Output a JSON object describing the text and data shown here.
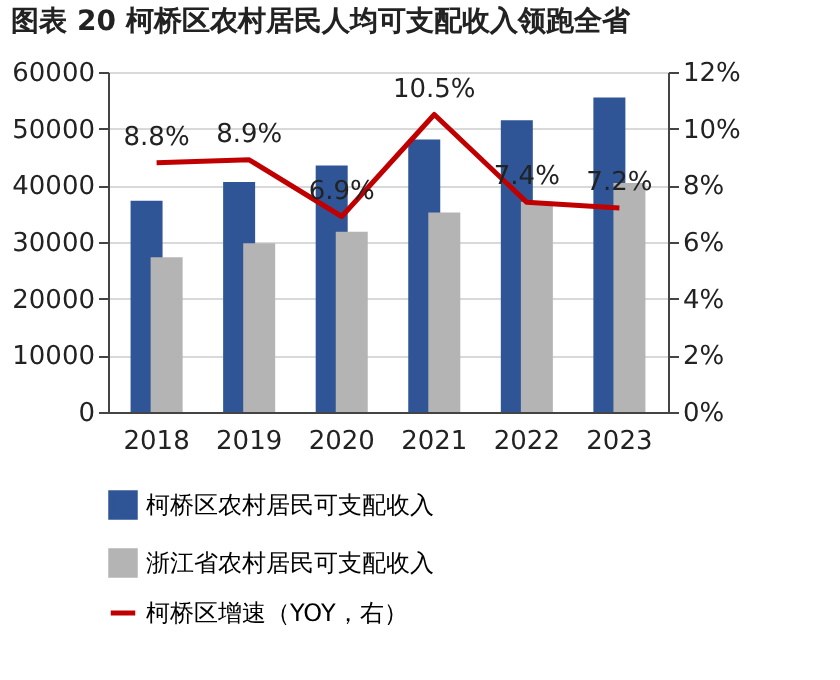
{
  "chart_data": {
    "type": "bar",
    "title": "图表 20 柯桥区农村居民人均可支配收入领跑全省",
    "categories": [
      "2018",
      "2019",
      "2020",
      "2021",
      "2022",
      "2023"
    ],
    "series": [
      {
        "name": "柯桥区农村居民可支配收入",
        "color": "#2f5597",
        "values": [
          37300,
          40600,
          43500,
          48100,
          51500,
          55500
        ]
      },
      {
        "name": "浙江省农村居民可支配收入",
        "color": "#b4b4b4",
        "values": [
          27300,
          29800,
          31800,
          35200,
          37100,
          40400
        ]
      },
      {
        "name": "柯桥区增速（YOY，右）",
        "type": "line",
        "axis": "y2",
        "color": "#c00000",
        "values": [
          8.8,
          8.9,
          6.9,
          10.5,
          7.4,
          7.2
        ],
        "value_labels": [
          "8.8%",
          "8.9%",
          "6.9%",
          "10.5%",
          "7.4%",
          "7.2%"
        ]
      }
    ],
    "ylim": [
      0,
      60000
    ],
    "yticks": [
      0,
      10000,
      20000,
      30000,
      40000,
      50000,
      60000
    ],
    "y2lim": [
      0,
      12
    ],
    "y2ticks": [
      {
        "value": 0,
        "label": "0%"
      },
      {
        "value": 2,
        "label": "2%"
      },
      {
        "value": 4,
        "label": "4%"
      },
      {
        "value": 6,
        "label": "6%"
      },
      {
        "value": 8,
        "label": "8%"
      },
      {
        "value": 10,
        "label": "10%"
      },
      {
        "value": 12,
        "label": "12%"
      }
    ],
    "grid": "y",
    "legend": "bottom"
  }
}
